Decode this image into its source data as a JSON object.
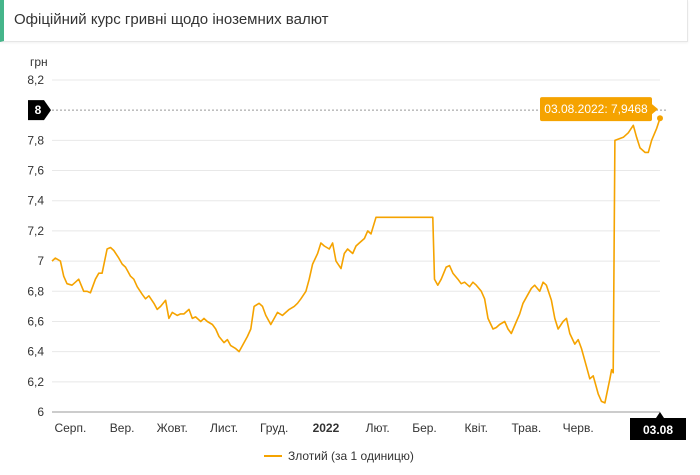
{
  "header": {
    "title": "Офіційний курс гривні щодо іноземних валют"
  },
  "colors": {
    "line": "#f5a300",
    "marker_bg": "#000000",
    "header_accent": "#45b58a"
  },
  "chart_data": {
    "type": "line",
    "title": "",
    "ylabel": "грн",
    "ylim": [
      6,
      8.2
    ],
    "yticks": [
      "8,2",
      "7,8",
      "7,6",
      "7,4",
      "7,2",
      "7",
      "6,8",
      "6,6",
      "6,4",
      "6,2",
      "6"
    ],
    "yticks_values": [
      8.2,
      7.8,
      7.6,
      7.4,
      7.2,
      7.0,
      6.8,
      6.6,
      6.4,
      6.2,
      6.0
    ],
    "y_marker": {
      "label": "8",
      "value": 8.0
    },
    "x_range": [
      "2021-08-04",
      "2022-08-03"
    ],
    "xticks": [
      {
        "label": "Серп.",
        "date": "2021-08-15",
        "bold": false
      },
      {
        "label": "Вер.",
        "date": "2021-09-15",
        "bold": false
      },
      {
        "label": "Жовт.",
        "date": "2021-10-15",
        "bold": false
      },
      {
        "label": "Лист.",
        "date": "2021-11-15",
        "bold": false
      },
      {
        "label": "Груд.",
        "date": "2021-12-15",
        "bold": false
      },
      {
        "label": "2022",
        "date": "2022-01-15",
        "bold": true
      },
      {
        "label": "Лют.",
        "date": "2022-02-15",
        "bold": false
      },
      {
        "label": "Бер.",
        "date": "2022-03-15",
        "bold": false
      },
      {
        "label": "Квіт.",
        "date": "2022-04-15",
        "bold": false
      },
      {
        "label": "Трав.",
        "date": "2022-05-15",
        "bold": false
      },
      {
        "label": "Черв.",
        "date": "2022-06-15",
        "bold": false
      }
    ],
    "x_marker": {
      "label": "03.08",
      "date": "2022-08-03"
    },
    "tooltip": {
      "text": "03.08.2022: 7,9468",
      "date": "2022-08-03",
      "value": 7.9468
    },
    "legend": {
      "position": "bottom",
      "label": "Злотий (за 1 одиницю)"
    },
    "series": [
      {
        "name": "Злотий (за 1 одиницю)",
        "points": [
          [
            "2021-08-04",
            7.0
          ],
          [
            "2021-08-06",
            7.02
          ],
          [
            "2021-08-09",
            7.0
          ],
          [
            "2021-08-11",
            6.9
          ],
          [
            "2021-08-13",
            6.85
          ],
          [
            "2021-08-16",
            6.84
          ],
          [
            "2021-08-18",
            6.86
          ],
          [
            "2021-08-20",
            6.88
          ],
          [
            "2021-08-23",
            6.8
          ],
          [
            "2021-08-25",
            6.8
          ],
          [
            "2021-08-27",
            6.79
          ],
          [
            "2021-08-30",
            6.88
          ],
          [
            "2021-09-01",
            6.92
          ],
          [
            "2021-09-03",
            6.92
          ],
          [
            "2021-09-06",
            7.08
          ],
          [
            "2021-09-08",
            7.09
          ],
          [
            "2021-09-10",
            7.07
          ],
          [
            "2021-09-13",
            7.02
          ],
          [
            "2021-09-15",
            6.98
          ],
          [
            "2021-09-17",
            6.96
          ],
          [
            "2021-09-20",
            6.9
          ],
          [
            "2021-09-22",
            6.88
          ],
          [
            "2021-09-24",
            6.83
          ],
          [
            "2021-09-27",
            6.78
          ],
          [
            "2021-09-29",
            6.75
          ],
          [
            "2021-10-01",
            6.77
          ],
          [
            "2021-10-04",
            6.72
          ],
          [
            "2021-10-06",
            6.68
          ],
          [
            "2021-10-08",
            6.7
          ],
          [
            "2021-10-11",
            6.74
          ],
          [
            "2021-10-13",
            6.62
          ],
          [
            "2021-10-15",
            6.66
          ],
          [
            "2021-10-18",
            6.64
          ],
          [
            "2021-10-20",
            6.65
          ],
          [
            "2021-10-22",
            6.65
          ],
          [
            "2021-10-25",
            6.68
          ],
          [
            "2021-10-27",
            6.62
          ],
          [
            "2021-10-29",
            6.63
          ],
          [
            "2021-11-01",
            6.6
          ],
          [
            "2021-11-03",
            6.62
          ],
          [
            "2021-11-05",
            6.6
          ],
          [
            "2021-11-08",
            6.58
          ],
          [
            "2021-11-10",
            6.55
          ],
          [
            "2021-11-12",
            6.5
          ],
          [
            "2021-11-15",
            6.46
          ],
          [
            "2021-11-17",
            6.48
          ],
          [
            "2021-11-19",
            6.44
          ],
          [
            "2021-11-22",
            6.42
          ],
          [
            "2021-11-24",
            6.4
          ],
          [
            "2021-11-26",
            6.44
          ],
          [
            "2021-11-29",
            6.5
          ],
          [
            "2021-12-01",
            6.55
          ],
          [
            "2021-12-03",
            6.7
          ],
          [
            "2021-12-06",
            6.72
          ],
          [
            "2021-12-08",
            6.7
          ],
          [
            "2021-12-10",
            6.64
          ],
          [
            "2021-12-13",
            6.58
          ],
          [
            "2021-12-15",
            6.62
          ],
          [
            "2021-12-17",
            6.66
          ],
          [
            "2021-12-20",
            6.64
          ],
          [
            "2021-12-22",
            6.66
          ],
          [
            "2021-12-24",
            6.68
          ],
          [
            "2021-12-27",
            6.7
          ],
          [
            "2021-12-29",
            6.72
          ],
          [
            "2021-12-31",
            6.75
          ],
          [
            "2022-01-03",
            6.8
          ],
          [
            "2022-01-05",
            6.88
          ],
          [
            "2022-01-07",
            6.98
          ],
          [
            "2022-01-10",
            7.05
          ],
          [
            "2022-01-12",
            7.12
          ],
          [
            "2022-01-14",
            7.1
          ],
          [
            "2022-01-17",
            7.08
          ],
          [
            "2022-01-19",
            7.12
          ],
          [
            "2022-01-21",
            7.0
          ],
          [
            "2022-01-24",
            6.95
          ],
          [
            "2022-01-26",
            7.05
          ],
          [
            "2022-01-28",
            7.08
          ],
          [
            "2022-01-31",
            7.05
          ],
          [
            "2022-02-02",
            7.1
          ],
          [
            "2022-02-04",
            7.12
          ],
          [
            "2022-02-07",
            7.15
          ],
          [
            "2022-02-09",
            7.2
          ],
          [
            "2022-02-11",
            7.18
          ],
          [
            "2022-02-14",
            7.29
          ],
          [
            "2022-02-16",
            7.29
          ],
          [
            "2022-03-01",
            7.29
          ],
          [
            "2022-03-10",
            7.29
          ],
          [
            "2022-03-20",
            7.29
          ],
          [
            "2022-03-21",
            6.88
          ],
          [
            "2022-03-23",
            6.84
          ],
          [
            "2022-03-25",
            6.88
          ],
          [
            "2022-03-28",
            6.96
          ],
          [
            "2022-03-30",
            6.97
          ],
          [
            "2022-04-01",
            6.92
          ],
          [
            "2022-04-04",
            6.88
          ],
          [
            "2022-04-06",
            6.85
          ],
          [
            "2022-04-08",
            6.86
          ],
          [
            "2022-04-11",
            6.83
          ],
          [
            "2022-04-13",
            6.86
          ],
          [
            "2022-04-15",
            6.84
          ],
          [
            "2022-04-18",
            6.8
          ],
          [
            "2022-04-20",
            6.75
          ],
          [
            "2022-04-22",
            6.62
          ],
          [
            "2022-04-25",
            6.55
          ],
          [
            "2022-04-27",
            6.56
          ],
          [
            "2022-04-29",
            6.58
          ],
          [
            "2022-05-02",
            6.6
          ],
          [
            "2022-05-04",
            6.55
          ],
          [
            "2022-05-06",
            6.52
          ],
          [
            "2022-05-09",
            6.6
          ],
          [
            "2022-05-11",
            6.65
          ],
          [
            "2022-05-13",
            6.72
          ],
          [
            "2022-05-16",
            6.78
          ],
          [
            "2022-05-18",
            6.82
          ],
          [
            "2022-05-20",
            6.84
          ],
          [
            "2022-05-23",
            6.8
          ],
          [
            "2022-05-25",
            6.86
          ],
          [
            "2022-05-27",
            6.84
          ],
          [
            "2022-05-30",
            6.74
          ],
          [
            "2022-06-01",
            6.62
          ],
          [
            "2022-06-03",
            6.55
          ],
          [
            "2022-06-06",
            6.6
          ],
          [
            "2022-06-08",
            6.62
          ],
          [
            "2022-06-10",
            6.52
          ],
          [
            "2022-06-13",
            6.45
          ],
          [
            "2022-06-15",
            6.48
          ],
          [
            "2022-06-17",
            6.42
          ],
          [
            "2022-06-20",
            6.3
          ],
          [
            "2022-06-22",
            6.22
          ],
          [
            "2022-06-24",
            6.24
          ],
          [
            "2022-06-27",
            6.12
          ],
          [
            "2022-06-29",
            6.07
          ],
          [
            "2022-07-01",
            6.06
          ],
          [
            "2022-07-04",
            6.22
          ],
          [
            "2022-07-05",
            6.28
          ],
          [
            "2022-07-06",
            6.26
          ],
          [
            "2022-07-07",
            7.8
          ],
          [
            "2022-07-12",
            7.82
          ],
          [
            "2022-07-15",
            7.85
          ],
          [
            "2022-07-18",
            7.9
          ],
          [
            "2022-07-20",
            7.82
          ],
          [
            "2022-07-22",
            7.75
          ],
          [
            "2022-07-25",
            7.72
          ],
          [
            "2022-07-27",
            7.72
          ],
          [
            "2022-07-29",
            7.8
          ],
          [
            "2022-08-01",
            7.88
          ],
          [
            "2022-08-03",
            7.9468
          ]
        ]
      }
    ]
  }
}
